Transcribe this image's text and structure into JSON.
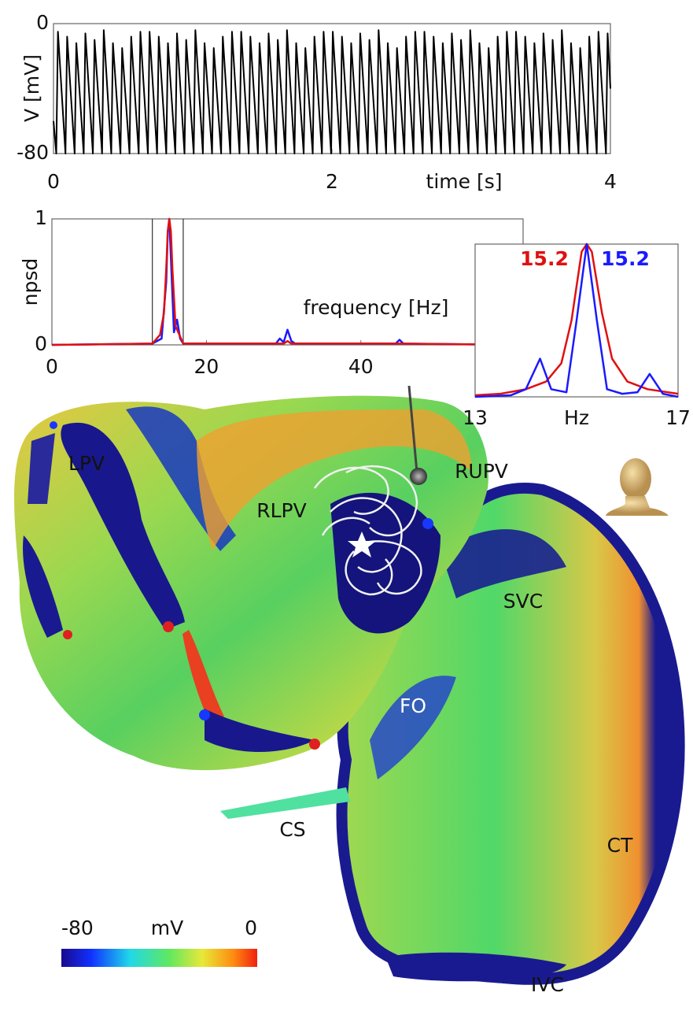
{
  "chart_data": [
    {
      "type": "line",
      "xlabel": "time [s]",
      "ylabel": "V [mV]",
      "xlim": [
        0,
        4
      ],
      "ylim": [
        -80,
        0
      ],
      "xticks": [
        0,
        2,
        4
      ],
      "yticks": [
        -80,
        0
      ],
      "series": [
        {
          "color": "#000000",
          "x": [
            0,
            0.02,
            0.032,
            0.086,
            0.098,
            0.152,
            0.164,
            0.217,
            0.229,
            0.283,
            0.295,
            0.349,
            0.361,
            0.415,
            0.427,
            0.481,
            0.493,
            0.546,
            0.558,
            0.612,
            0.624,
            0.678,
            0.69,
            0.744,
            0.756,
            0.81,
            0.822,
            0.875,
            0.887,
            0.941,
            0.953,
            1.007,
            1.019,
            1.073,
            1.085,
            1.139,
            1.151,
            1.204,
            1.216,
            1.27,
            1.282,
            1.336,
            1.348,
            1.402,
            1.414,
            1.468,
            1.48,
            1.533,
            1.545,
            1.599,
            1.611,
            1.665,
            1.677,
            1.731,
            1.743,
            1.797,
            1.809,
            1.862,
            1.874,
            1.928,
            1.94,
            1.994,
            2.006,
            2.06,
            2.072,
            2.126,
            2.138,
            2.191,
            2.203,
            2.257,
            2.269,
            2.323,
            2.335,
            2.389,
            2.401,
            2.455,
            2.467,
            2.52,
            2.532,
            2.586,
            2.598,
            2.652,
            2.664,
            2.718,
            2.73,
            2.784,
            2.796,
            2.849,
            2.861,
            2.915,
            2.927,
            2.981,
            2.993,
            3.047,
            3.059,
            3.113,
            3.125,
            3.178,
            3.19,
            3.244,
            3.256,
            3.31,
            3.322,
            3.376,
            3.388,
            3.442,
            3.454,
            3.507,
            3.519,
            3.573,
            3.585,
            3.639,
            3.651,
            3.705,
            3.717,
            3.771,
            3.783,
            3.836,
            3.848,
            3.902,
            3.914,
            3.968,
            3.98,
            4
          ],
          "values": [
            -60,
            -80,
            -5,
            -80,
            -8,
            -80,
            -12,
            -80,
            -6,
            -80,
            -10,
            -80,
            -4,
            -80,
            -12,
            -80,
            -15,
            -80,
            -8,
            -80,
            -5,
            -80,
            -5,
            -80,
            -8,
            -80,
            -12,
            -80,
            -6,
            -80,
            -10,
            -80,
            -4,
            -80,
            -12,
            -80,
            -15,
            -80,
            -8,
            -80,
            -5,
            -80,
            -5,
            -80,
            -8,
            -80,
            -12,
            -80,
            -6,
            -80,
            -10,
            -80,
            -4,
            -80,
            -12,
            -80,
            -15,
            -80,
            -8,
            -80,
            -5,
            -80,
            -5,
            -80,
            -8,
            -80,
            -12,
            -80,
            -6,
            -80,
            -10,
            -80,
            -4,
            -80,
            -12,
            -80,
            -15,
            -80,
            -8,
            -80,
            -5,
            -80,
            -5,
            -80,
            -8,
            -80,
            -12,
            -80,
            -6,
            -80,
            -10,
            -80,
            -4,
            -80,
            -12,
            -80,
            -15,
            -80,
            -8,
            -80,
            -5,
            -80,
            -5,
            -80,
            -8,
            -80,
            -12,
            -80,
            -6,
            -80,
            -10,
            -80,
            -4,
            -80,
            -12,
            -80,
            -15,
            -80,
            -8,
            -80,
            -5,
            -80,
            -6,
            -40
          ]
        }
      ]
    },
    {
      "type": "line",
      "xlabel": "frequency [Hz]",
      "ylabel": "npsd",
      "xlim": [
        0,
        61
      ],
      "ylim": [
        0,
        1
      ],
      "xticks": [
        0,
        20,
        40
      ],
      "yticks": [
        0,
        1
      ],
      "vlines": [
        13,
        17
      ],
      "series": [
        {
          "color": "#1a1aff",
          "x": [
            0,
            13,
            14.2,
            14.4,
            14.8,
            15,
            15.2,
            15.4,
            15.8,
            16.2,
            16.6,
            17,
            29,
            29.5,
            30,
            30.5,
            31,
            31.5,
            44.5,
            45,
            45.5,
            61
          ],
          "values": [
            0,
            0.01,
            0.05,
            0.2,
            0.5,
            0.9,
            1,
            0.7,
            0.1,
            0.2,
            0.05,
            0.01,
            0.01,
            0.05,
            0.02,
            0.12,
            0.03,
            0.01,
            0.01,
            0.04,
            0.01,
            0
          ]
        },
        {
          "color": "#e01010",
          "x": [
            0,
            13,
            14,
            14.5,
            14.8,
            15,
            15.2,
            15.4,
            15.6,
            16,
            17,
            30,
            30.5,
            31,
            45,
            61
          ],
          "values": [
            0,
            0.01,
            0.08,
            0.25,
            0.6,
            0.9,
            1,
            0.9,
            0.6,
            0.15,
            0.01,
            0.01,
            0.03,
            0.01,
            0.01,
            0
          ]
        }
      ]
    },
    {
      "type": "line",
      "xlabel": "Hz",
      "xlim": [
        13,
        17
      ],
      "ylim": [
        0,
        1
      ],
      "xticks": [
        13,
        17
      ],
      "peak_labels": [
        {
          "text": "15.2",
          "color": "#e01010"
        },
        {
          "text": "15.2",
          "color": "#1a1aff"
        }
      ],
      "series": [
        {
          "color": "#e01010",
          "x": [
            13,
            13.5,
            14,
            14.4,
            14.7,
            14.9,
            15.1,
            15.2,
            15.3,
            15.5,
            15.7,
            16,
            16.4,
            17
          ],
          "values": [
            0.01,
            0.02,
            0.05,
            0.1,
            0.22,
            0.5,
            0.95,
            1,
            0.95,
            0.55,
            0.25,
            0.1,
            0.05,
            0.02
          ]
        },
        {
          "color": "#1a1aff",
          "x": [
            13,
            13.7,
            14,
            14.28,
            14.5,
            14.8,
            15,
            15.2,
            15.4,
            15.6,
            15.9,
            16.2,
            16.44,
            16.7,
            17
          ],
          "values": [
            0,
            0.01,
            0.05,
            0.25,
            0.05,
            0.03,
            0.5,
            1,
            0.5,
            0.05,
            0.02,
            0.03,
            0.15,
            0.02,
            0
          ]
        }
      ]
    },
    {
      "type": "colorbar",
      "title": "mV",
      "clim": [
        -80,
        0
      ],
      "ticks": [
        -80,
        0
      ]
    }
  ],
  "surface": {
    "labels": [
      "LPV",
      "RUPV",
      "RLPV",
      "SVC",
      "FO",
      "CS",
      "CT",
      "IVC"
    ]
  }
}
